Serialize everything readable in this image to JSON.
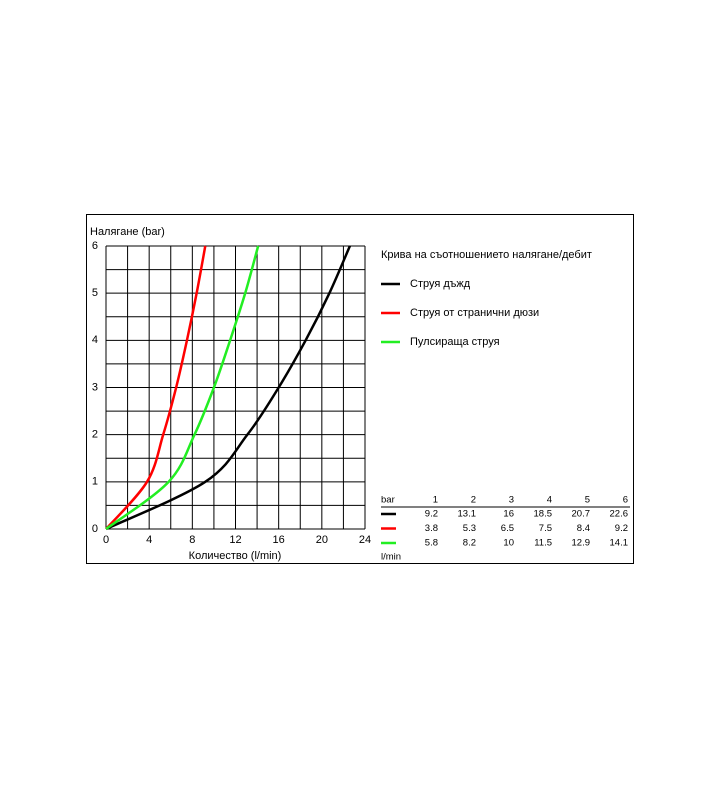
{
  "chart_data": {
    "type": "line",
    "title": "Крива на съотношението налягане/дебит",
    "y_label": "Налягане (bar)",
    "x_label": "Количество (l/min)",
    "xlim": [
      0,
      24
    ],
    "xticks": [
      0,
      4,
      8,
      12,
      16,
      20,
      24
    ],
    "ylim": [
      0,
      6
    ],
    "yticks": [
      0,
      1,
      2,
      3,
      4,
      5,
      6
    ],
    "grid": true,
    "series": [
      {
        "name": "Струя дъжд",
        "color": "#000000",
        "x": [
          0,
          9.2,
          13.1,
          16.0,
          18.5,
          20.7,
          22.6
        ],
        "values": [
          0,
          1,
          2,
          3,
          4,
          5,
          6
        ]
      },
      {
        "name": "Струя от странични дюзи",
        "color": "#ff0000",
        "x": [
          0,
          3.8,
          5.3,
          6.5,
          7.5,
          8.4,
          9.2
        ],
        "values": [
          0,
          1,
          2,
          3,
          4,
          5,
          6
        ]
      },
      {
        "name": "Пулсираща струя",
        "color": "#22ee22",
        "x": [
          0,
          5.8,
          8.2,
          10.0,
          11.5,
          12.9,
          14.1
        ],
        "values": [
          0,
          1,
          2,
          3,
          4,
          5,
          6
        ]
      }
    ]
  },
  "table": {
    "header": "bar",
    "pressures": [
      1,
      2,
      3,
      4,
      5,
      6
    ],
    "unit": "l/min"
  }
}
